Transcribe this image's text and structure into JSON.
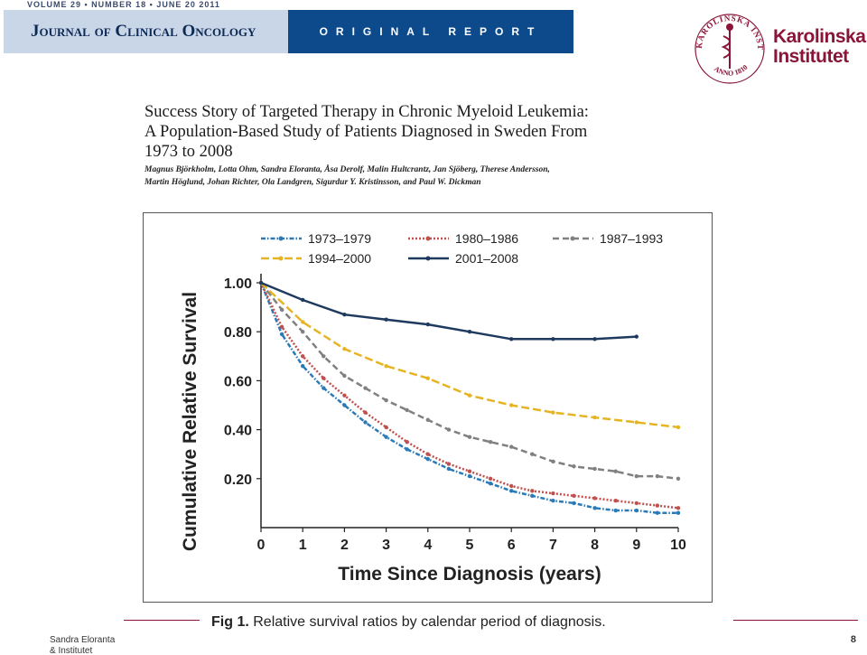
{
  "header": {
    "top_line": "VOLUME 29 • NUMBER 18 • JUNE 20 2011",
    "journal": "Journal of Clinical Oncology",
    "section": "ORIGINAL REPORT"
  },
  "logo": {
    "institution_line1": "Karolinska",
    "institution_line2": "Institutet",
    "seal_text": "KAROLINSKA INSTITUTET • ANNO 1810",
    "brand_color": "#8a1538"
  },
  "article": {
    "title": "Success Story of Targeted Therapy in Chronic Myeloid Leukemia: A Population-Based Study of Patients Diagnosed in Sweden From 1973 to 2008",
    "authors": "Magnus Björkholm, Lotta Ohm, Sandra Eloranta, Åsa Derolf, Malin Hultcrantz, Jan Sjöberg, Therese Andersson, Martin Höglund, Johan Richter, Ola Landgren, Sigurdur Y. Kristinsson, and Paul W. Dickman"
  },
  "caption": {
    "label": "Fig 1.",
    "text": "Relative survival ratios by calendar period of diagnosis."
  },
  "footer": {
    "author": "Sandra Eloranta & Institutet",
    "page": "8"
  },
  "chart_data": {
    "type": "line",
    "xlabel": "Time Since Diagnosis (years)",
    "ylabel": "Cumulative Relative Survival",
    "xlim": [
      0,
      10
    ],
    "ylim": [
      0,
      1.0
    ],
    "xticks": [
      0,
      1,
      2,
      3,
      4,
      5,
      6,
      7,
      8,
      9,
      10
    ],
    "yticks": [
      0.2,
      0.4,
      0.6,
      0.8,
      1.0
    ],
    "ytick_labels": [
      "0.20",
      "0.40",
      "0.60",
      "0.80",
      "1.00"
    ],
    "legend_position": "top",
    "series": [
      {
        "name": "1973–1979",
        "color": "#2a7ab8",
        "dash": "dashdot",
        "x": [
          0,
          0.5,
          1,
          1.5,
          2,
          2.5,
          3,
          3.5,
          4,
          4.5,
          5,
          5.5,
          6,
          6.5,
          7,
          7.5,
          8,
          8.5,
          9,
          9.5,
          10
        ],
        "y": [
          1.0,
          0.79,
          0.66,
          0.57,
          0.5,
          0.43,
          0.37,
          0.32,
          0.28,
          0.24,
          0.21,
          0.18,
          0.15,
          0.13,
          0.11,
          0.1,
          0.08,
          0.07,
          0.07,
          0.06,
          0.06
        ]
      },
      {
        "name": "1980–1986",
        "color": "#c0504d",
        "dash": "dotted",
        "x": [
          0,
          0.5,
          1,
          1.5,
          2,
          2.5,
          3,
          3.5,
          4,
          4.5,
          5,
          5.5,
          6,
          6.5,
          7,
          7.5,
          8,
          8.5,
          9,
          9.5,
          10
        ],
        "y": [
          1.0,
          0.82,
          0.7,
          0.61,
          0.54,
          0.47,
          0.41,
          0.35,
          0.3,
          0.26,
          0.23,
          0.2,
          0.17,
          0.15,
          0.14,
          0.13,
          0.12,
          0.11,
          0.1,
          0.09,
          0.08
        ]
      },
      {
        "name": "1987–1993",
        "color": "#808080",
        "dash": "dashed",
        "x": [
          0,
          0.5,
          1,
          1.5,
          2,
          2.5,
          3,
          3.5,
          4,
          4.5,
          5,
          5.5,
          6,
          6.5,
          7,
          7.5,
          8,
          8.5,
          9,
          9.5,
          10
        ],
        "y": [
          1.0,
          0.89,
          0.8,
          0.7,
          0.62,
          0.57,
          0.52,
          0.48,
          0.44,
          0.4,
          0.37,
          0.35,
          0.33,
          0.3,
          0.27,
          0.25,
          0.24,
          0.23,
          0.21,
          0.21,
          0.2
        ]
      },
      {
        "name": "1994–2000",
        "color": "#e6b422",
        "dash": "longdash",
        "x": [
          0,
          1,
          2,
          3,
          4,
          5,
          6,
          7,
          8,
          9,
          10
        ],
        "y": [
          1.0,
          0.84,
          0.73,
          0.66,
          0.61,
          0.54,
          0.5,
          0.47,
          0.45,
          0.43,
          0.41
        ]
      },
      {
        "name": "2001–2008",
        "color": "#1f3a5f",
        "dash": "solid",
        "x": [
          0,
          1,
          2,
          3,
          4,
          5,
          6,
          7,
          8,
          9
        ],
        "y": [
          1.0,
          0.93,
          0.87,
          0.85,
          0.83,
          0.8,
          0.77,
          0.77,
          0.77,
          0.78
        ]
      }
    ]
  }
}
